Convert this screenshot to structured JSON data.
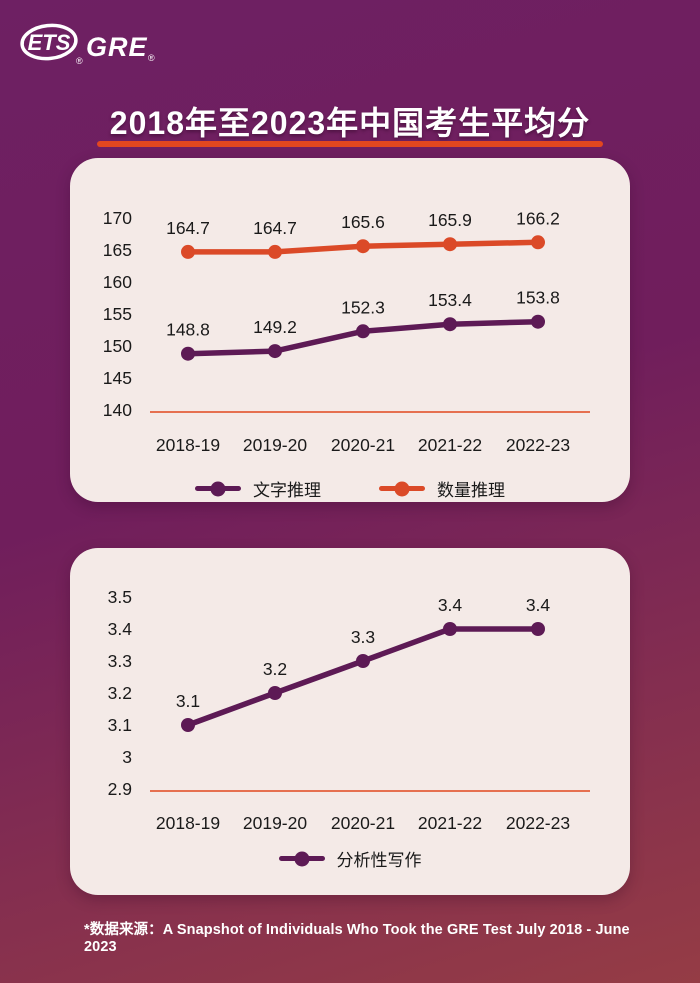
{
  "header": {
    "logo_ets": "ETS",
    "logo_gre": "GRE",
    "reg": "®",
    "title": "2018年至2023年中国考生平均分"
  },
  "colors": {
    "purple": "#5D1A55",
    "orange": "#DB4A28",
    "baseline": "#E2471F",
    "card_bg": "#F4EAE7",
    "text_dark": "#1a1a1a",
    "bg_top": "#6E2063",
    "bg_bottom": "#953C45",
    "white": "#FFFFFF"
  },
  "chart_data": [
    {
      "type": "line",
      "title": "",
      "categories": [
        "2018-19",
        "2019-20",
        "2020-21",
        "2021-22",
        "2022-23"
      ],
      "series": [
        {
          "name": "文字推理",
          "values": [
            148.8,
            149.2,
            152.3,
            153.4,
            153.8
          ],
          "color": "#5D1A55"
        },
        {
          "name": "数量推理",
          "values": [
            164.7,
            164.7,
            165.6,
            165.9,
            166.2
          ],
          "color": "#DB4A28"
        }
      ],
      "ylim": [
        140,
        170
      ],
      "yticks": [
        "170",
        "165",
        "160",
        "155",
        "150",
        "145",
        "140"
      ],
      "xlabel": "",
      "ylabel": "",
      "grid": false,
      "legend_position": "bottom",
      "data_labels": true
    },
    {
      "type": "line",
      "title": "",
      "categories": [
        "2018-19",
        "2019-20",
        "2020-21",
        "2021-22",
        "2022-23"
      ],
      "series": [
        {
          "name": "分析性写作",
          "values": [
            3.1,
            3.2,
            3.3,
            3.4,
            3.4
          ],
          "color": "#5D1A55"
        }
      ],
      "ylim": [
        2.9,
        3.5
      ],
      "yticks": [
        "3.5",
        "3.4",
        "3.3",
        "3.2",
        "3.1",
        "3",
        "2.9"
      ],
      "xlabel": "",
      "ylabel": "",
      "grid": false,
      "legend_position": "bottom",
      "data_labels": true
    }
  ],
  "footer": {
    "source": "*数据来源：A Snapshot of Individuals Who Took the GRE Test July 2018 - June 2023"
  }
}
